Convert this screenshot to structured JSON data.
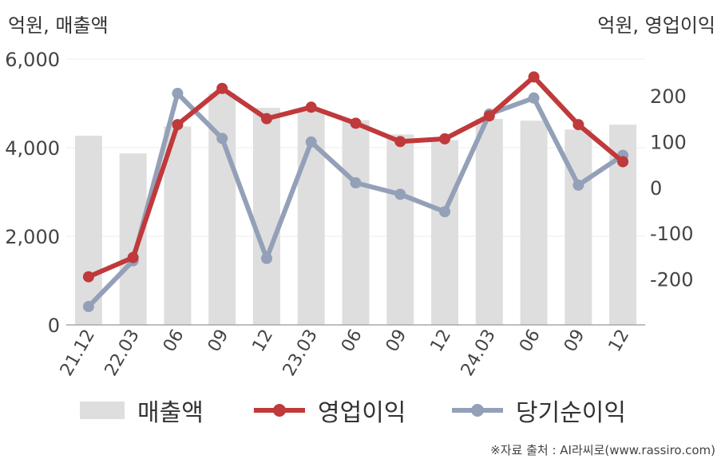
{
  "left_unit": "억원, 매출액",
  "right_unit": "억원, 영업이익",
  "source": "※자료 출처 : AI라씨로(www.rassiro.com)",
  "legend": [
    {
      "label": "매출액",
      "kind": "bar",
      "color": "#dedede"
    },
    {
      "label": "영업이익",
      "kind": "line",
      "color": "#c0393b"
    },
    {
      "label": "당기순이익",
      "kind": "line",
      "color": "#93a0b8"
    }
  ],
  "chart_data": {
    "type": "bar+line",
    "categories": [
      "21.12",
      "22.03",
      "06",
      "09",
      "12",
      "23.03",
      "06",
      "09",
      "12",
      "24.03",
      "06",
      "09",
      "12"
    ],
    "y_left": {
      "ticks": [
        "0",
        "2,000",
        "4,000",
        "6,000"
      ],
      "tick_values": [
        0,
        2000,
        4000,
        6000
      ],
      "range": [
        0,
        6000
      ]
    },
    "y_right": {
      "ticks": [
        "-200",
        "-100",
        "0",
        "100",
        "200"
      ],
      "tick_values": [
        -200,
        -100,
        0,
        100,
        200
      ],
      "range": [
        -300,
        280
      ]
    },
    "grid": true,
    "legend_position": "bottom",
    "series": [
      {
        "name": "매출액",
        "type": "bar",
        "axis": "left",
        "color": "#dedede",
        "values": [
          4270,
          3870,
          4480,
          5230,
          4900,
          4850,
          4620,
          4300,
          4170,
          4650,
          4610,
          4410,
          4520
        ]
      },
      {
        "name": "영업이익",
        "type": "line",
        "axis": "right",
        "color": "#c0393b",
        "values": [
          -195,
          -153,
          137,
          216,
          150,
          175,
          140,
          100,
          106,
          156,
          241,
          137,
          56
        ]
      },
      {
        "name": "당기순이익",
        "type": "line",
        "axis": "right",
        "color": "#93a0b8",
        "values": [
          -260,
          -160,
          205,
          107,
          -155,
          99,
          10,
          -15,
          -53,
          160,
          195,
          5,
          70
        ]
      }
    ]
  }
}
